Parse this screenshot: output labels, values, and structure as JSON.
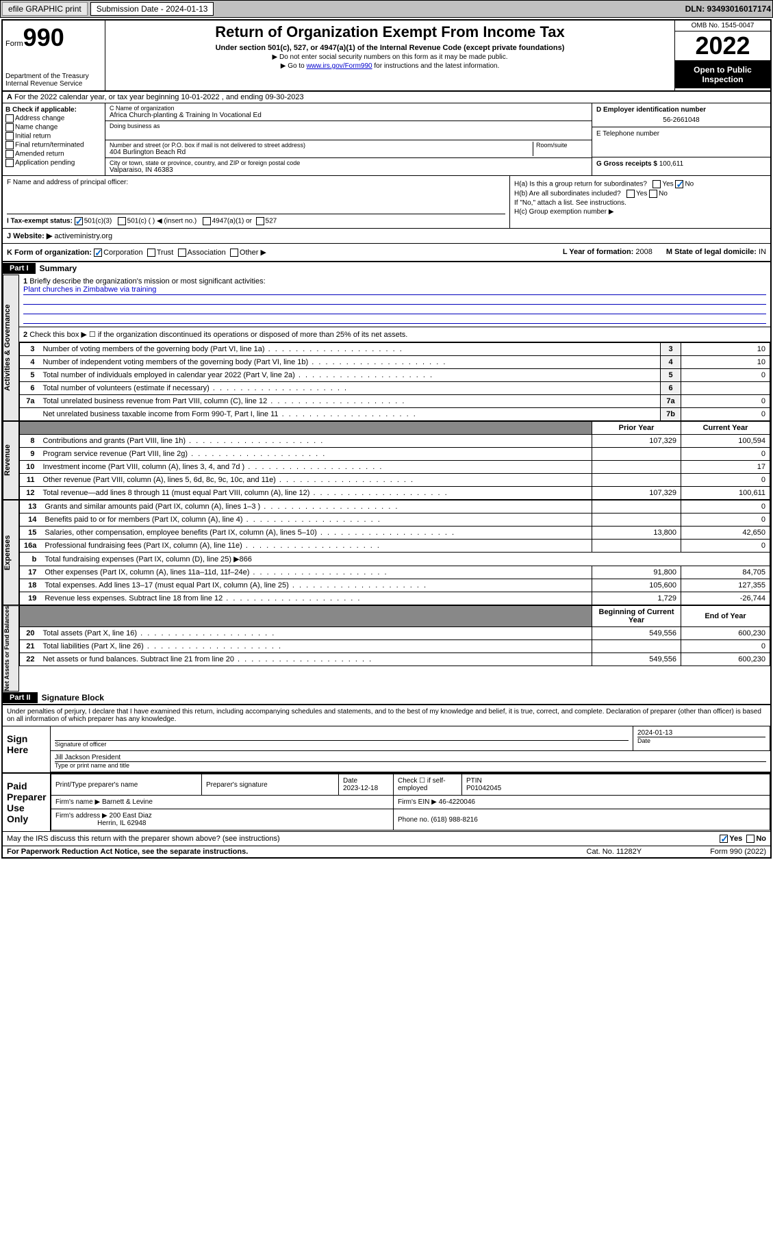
{
  "topbar": {
    "efile": "efile GRAPHIC print",
    "submission_label": "Submission Date - 2024-01-13",
    "dln": "DLN: 93493016017174"
  },
  "header": {
    "form_label": "Form",
    "form_num": "990",
    "dept": "Department of the Treasury Internal Revenue Service",
    "title": "Return of Organization Exempt From Income Tax",
    "subtitle": "Under section 501(c), 527, or 4947(a)(1) of the Internal Revenue Code (except private foundations)",
    "note1": "▶ Do not enter social security numbers on this form as it may be made public.",
    "note2_pre": "▶ Go to ",
    "note2_link": "www.irs.gov/Form990",
    "note2_post": " for instructions and the latest information.",
    "omb": "OMB No. 1545-0047",
    "year": "2022",
    "open": "Open to Public Inspection"
  },
  "row_a": "For the 2022 calendar year, or tax year beginning 10-01-2022   , and ending 09-30-2023",
  "box_b": {
    "title": "B Check if applicable:",
    "opts": [
      "Address change",
      "Name change",
      "Initial return",
      "Final return/terminated",
      "Amended return",
      "Application pending"
    ]
  },
  "box_c": {
    "name_label": "C Name of organization",
    "name": "Africa Church-planting & Training In Vocational Ed",
    "dba_label": "Doing business as",
    "addr_label": "Number and street (or P.O. box if mail is not delivered to street address)",
    "room_label": "Room/suite",
    "addr": "404 Burlington Beach Rd",
    "city_label": "City or town, state or province, country, and ZIP or foreign postal code",
    "city": "Valparaiso, IN  46383"
  },
  "box_d": {
    "ein_label": "D Employer identification number",
    "ein": "56-2661048",
    "phone_label": "E Telephone number",
    "gross_label": "G Gross receipts $",
    "gross": "100,611"
  },
  "box_f": "F  Name and address of principal officer:",
  "box_h": {
    "ha": "H(a)  Is this a group return for subordinates?",
    "hb": "H(b)  Are all subordinates included?",
    "hb_note": "If \"No,\" attach a list. See instructions.",
    "hc": "H(c)  Group exemption number ▶",
    "yes": "Yes",
    "no": "No"
  },
  "box_i": {
    "label": "I  Tax-exempt status:",
    "c3": "501(c)(3)",
    "c": "501(c) (   ) ◀ (insert no.)",
    "a1": "4947(a)(1) or",
    "s527": "527"
  },
  "box_j": {
    "label": "J  Website: ▶",
    "val": "activeministry.org"
  },
  "box_k": {
    "label": "K Form of organization:",
    "corp": "Corporation",
    "trust": "Trust",
    "assoc": "Association",
    "other": "Other ▶"
  },
  "box_l": {
    "label": "L Year of formation:",
    "val": "2008"
  },
  "box_m": {
    "label": "M State of legal domicile:",
    "val": "IN"
  },
  "part1": {
    "header": "Part I",
    "title": "Summary",
    "line1": "Briefly describe the organization's mission or most significant activities:",
    "mission": "Plant churches in Zimbabwe via training",
    "line2": "Check this box ▶ ☐  if the organization discontinued its operations or disposed of more than 25% of its net assets.",
    "tabs": {
      "gov": "Activities & Governance",
      "rev": "Revenue",
      "exp": "Expenses",
      "net": "Net Assets or Fund Balances"
    },
    "rows_gov": [
      {
        "n": "3",
        "d": "Number of voting members of the governing body (Part VI, line 1a)",
        "l": "3",
        "v": "10"
      },
      {
        "n": "4",
        "d": "Number of independent voting members of the governing body (Part VI, line 1b)",
        "l": "4",
        "v": "10"
      },
      {
        "n": "5",
        "d": "Total number of individuals employed in calendar year 2022 (Part V, line 2a)",
        "l": "5",
        "v": "0"
      },
      {
        "n": "6",
        "d": "Total number of volunteers (estimate if necessary)",
        "l": "6",
        "v": ""
      },
      {
        "n": "7a",
        "d": "Total unrelated business revenue from Part VIII, column (C), line 12",
        "l": "7a",
        "v": "0"
      },
      {
        "n": "",
        "d": "Net unrelated business taxable income from Form 990-T, Part I, line 11",
        "l": "7b",
        "v": "0"
      }
    ],
    "col_headers": {
      "prior": "Prior Year",
      "current": "Current Year",
      "begin": "Beginning of Current Year",
      "end": "End of Year"
    },
    "rows_rev": [
      {
        "n": "8",
        "d": "Contributions and grants (Part VIII, line 1h)",
        "p": "107,329",
        "c": "100,594"
      },
      {
        "n": "9",
        "d": "Program service revenue (Part VIII, line 2g)",
        "p": "",
        "c": "0"
      },
      {
        "n": "10",
        "d": "Investment income (Part VIII, column (A), lines 3, 4, and 7d )",
        "p": "",
        "c": "17"
      },
      {
        "n": "11",
        "d": "Other revenue (Part VIII, column (A), lines 5, 6d, 8c, 9c, 10c, and 11e)",
        "p": "",
        "c": "0"
      },
      {
        "n": "12",
        "d": "Total revenue—add lines 8 through 11 (must equal Part VIII, column (A), line 12)",
        "p": "107,329",
        "c": "100,611"
      }
    ],
    "rows_exp": [
      {
        "n": "13",
        "d": "Grants and similar amounts paid (Part IX, column (A), lines 1–3 )",
        "p": "",
        "c": "0"
      },
      {
        "n": "14",
        "d": "Benefits paid to or for members (Part IX, column (A), line 4)",
        "p": "",
        "c": "0"
      },
      {
        "n": "15",
        "d": "Salaries, other compensation, employee benefits (Part IX, column (A), lines 5–10)",
        "p": "13,800",
        "c": "42,650"
      },
      {
        "n": "16a",
        "d": "Professional fundraising fees (Part IX, column (A), line 11e)",
        "p": "",
        "c": "0"
      },
      {
        "n": "b",
        "d": "Total fundraising expenses (Part IX, column (D), line 25) ▶866",
        "p": null,
        "c": null
      },
      {
        "n": "17",
        "d": "Other expenses (Part IX, column (A), lines 11a–11d, 11f–24e)",
        "p": "91,800",
        "c": "84,705"
      },
      {
        "n": "18",
        "d": "Total expenses. Add lines 13–17 (must equal Part IX, column (A), line 25)",
        "p": "105,600",
        "c": "127,355"
      },
      {
        "n": "19",
        "d": "Revenue less expenses. Subtract line 18 from line 12",
        "p": "1,729",
        "c": "-26,744"
      }
    ],
    "rows_net": [
      {
        "n": "20",
        "d": "Total assets (Part X, line 16)",
        "p": "549,556",
        "c": "600,230"
      },
      {
        "n": "21",
        "d": "Total liabilities (Part X, line 26)",
        "p": "",
        "c": "0"
      },
      {
        "n": "22",
        "d": "Net assets or fund balances. Subtract line 21 from line 20",
        "p": "549,556",
        "c": "600,230"
      }
    ]
  },
  "part2": {
    "header": "Part II",
    "title": "Signature Block",
    "penalty": "Under penalties of perjury, I declare that I have examined this return, including accompanying schedules and statements, and to the best of my knowledge and belief, it is true, correct, and complete. Declaration of preparer (other than officer) is based on all information of which preparer has any knowledge.",
    "sign_here": "Sign Here",
    "sig_officer": "Signature of officer",
    "sig_date": "2024-01-13",
    "date_lbl": "Date",
    "officer_name": "Jill Jackson  President",
    "officer_lbl": "Type or print name and title",
    "paid": "Paid Preparer Use Only",
    "prep_name_lbl": "Print/Type preparer's name",
    "prep_sig_lbl": "Preparer's signature",
    "prep_date_lbl": "Date",
    "prep_date": "2023-12-18",
    "check_lbl": "Check ☐ if self-employed",
    "ptin_lbl": "PTIN",
    "ptin": "P01042045",
    "firm_name_lbl": "Firm's name   ▶",
    "firm_name": "Barnett & Levine",
    "firm_ein_lbl": "Firm's EIN ▶",
    "firm_ein": "46-4220046",
    "firm_addr_lbl": "Firm's address ▶",
    "firm_addr": "200 East Diaz",
    "firm_city": "Herrin, IL  62948",
    "firm_phone_lbl": "Phone no.",
    "firm_phone": "(618) 988-8216",
    "may_irs": "May the IRS discuss this return with the preparer shown above? (see instructions)"
  },
  "footer": {
    "paperwork": "For Paperwork Reduction Act Notice, see the separate instructions.",
    "cat": "Cat. No. 11282Y",
    "form": "Form 990 (2022)"
  }
}
